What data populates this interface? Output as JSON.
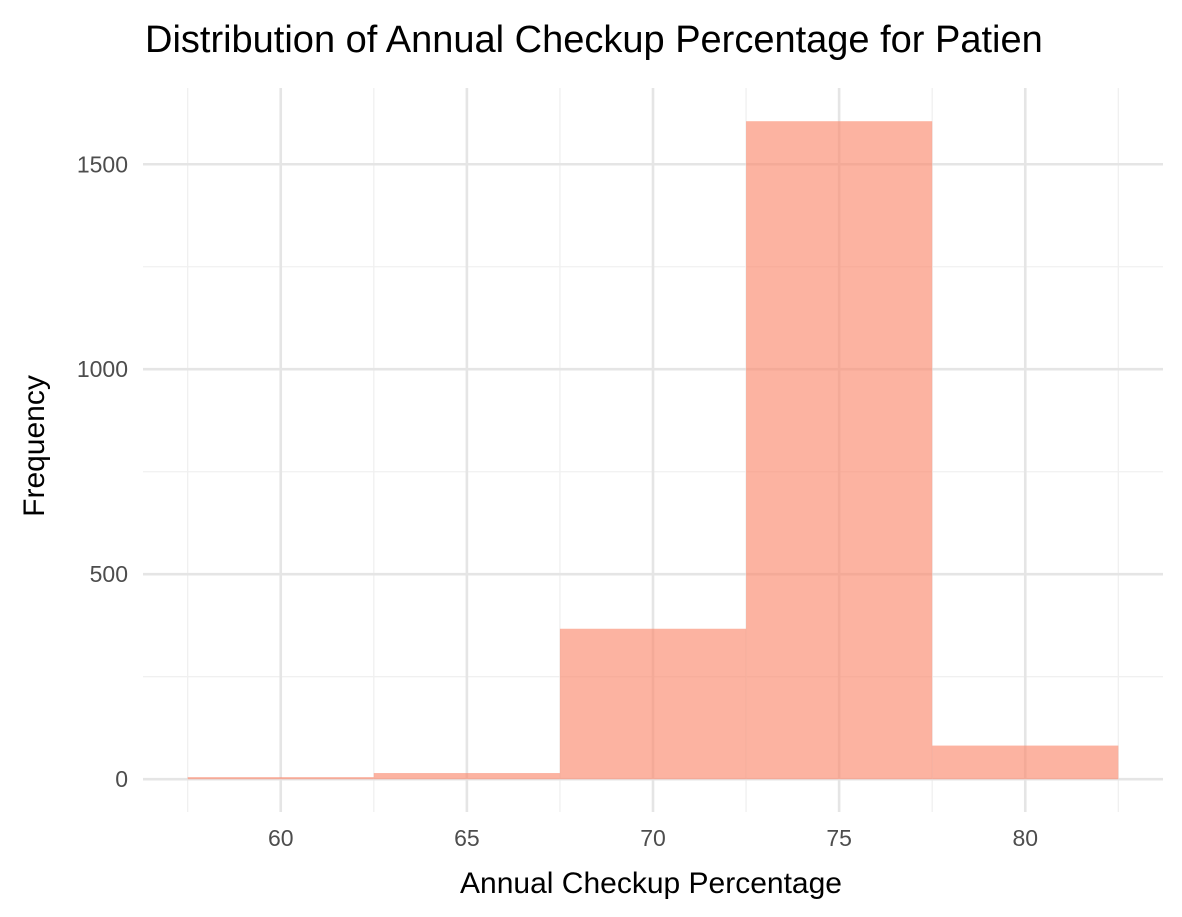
{
  "chart_data": {
    "type": "bar",
    "title": "Distribution of Annual Checkup Percentage for Patien",
    "xlabel": "Annual Checkup Percentage",
    "ylabel": "Frequency",
    "bins": [
      {
        "x0": 57.5,
        "x1": 62.5,
        "value": 5
      },
      {
        "x0": 62.5,
        "x1": 67.5,
        "value": 15
      },
      {
        "x0": 67.5,
        "x1": 72.5,
        "value": 367
      },
      {
        "x0": 72.5,
        "x1": 77.5,
        "value": 1605
      },
      {
        "x0": 77.5,
        "x1": 82.5,
        "value": 82
      }
    ],
    "x_ticks": [
      60,
      65,
      70,
      75,
      80
    ],
    "y_ticks": [
      0,
      500,
      1000,
      1500
    ],
    "xlim": [
      56.3,
      83.7
    ],
    "ylim": [
      -80,
      1686
    ],
    "grid": true,
    "legend": "none",
    "colors": {
      "bar_fill": "#FA8B6F",
      "bar_opacity": 0.65,
      "grid_major": "#e5e5e5",
      "grid_minor": "#f0f0f0",
      "tick_text": "#4d4d4d",
      "title_text": "#000000"
    }
  }
}
